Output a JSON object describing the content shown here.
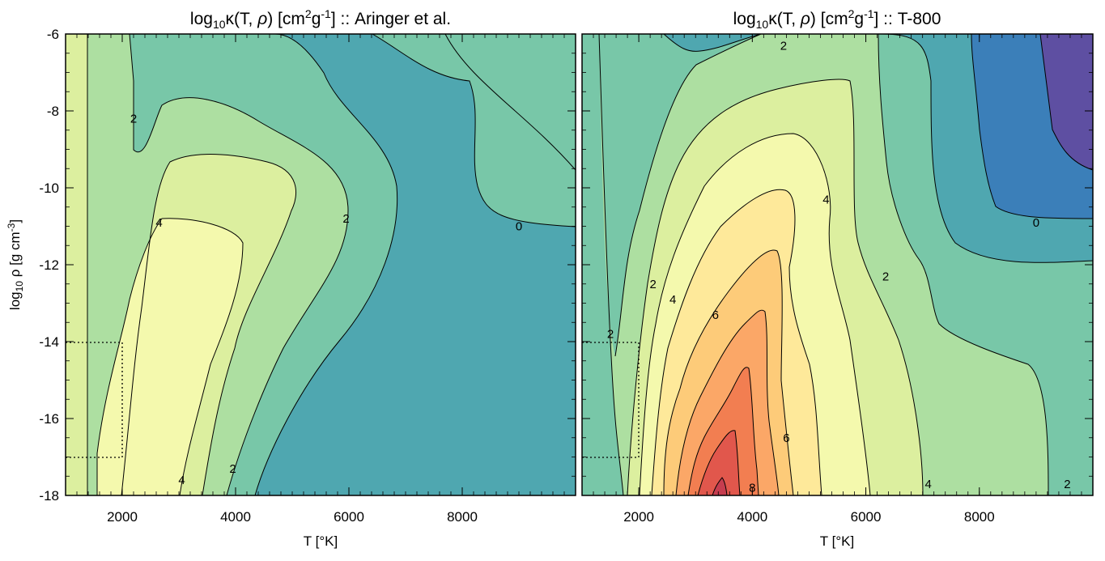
{
  "palette": {
    "neg2": "#5e4fa2",
    "neg1": "#3b7fb9",
    "lvl0": "#4fa7b0",
    "lvl1": "#78c7a8",
    "lvl2": "#addfa1",
    "lvl3": "#dcef9f",
    "lvl4": "#f4f9ad",
    "lvl5": "#fee99a",
    "lvl6": "#fdcb79",
    "lvl7": "#fba767",
    "lvl8": "#f27e51",
    "lvl9": "#e1574c",
    "lvl10": "#c63d4f"
  },
  "chart_data": [
    {
      "type": "heatmap",
      "subtype": "filled-contour",
      "title_parts": {
        "pre": "log",
        "sub": "10",
        "mid": "κ(T, ",
        "rho": "ρ",
        "mid2": ") [cm",
        "sup1": "2",
        "mid3": "g",
        "sup2": "-1",
        "post": "] :: Aringer et al."
      },
      "xlabel": "T [°K]",
      "ylabel_parts": {
        "pre": "log",
        "sub": "10",
        "mid": " ρ [g cm",
        "sup": "-3",
        "post": "]"
      },
      "xlim": [
        1000,
        10000
      ],
      "ylim": [
        -18,
        -6
      ],
      "xticks": [
        2000,
        4000,
        6000,
        8000
      ],
      "yticks": [
        -18,
        -16,
        -14,
        -12,
        -10,
        -8,
        -6
      ],
      "contour_labels": [
        {
          "text": "2",
          "x": 2200,
          "y": -8.2
        },
        {
          "text": "4",
          "x": 2650,
          "y": -10.9
        },
        {
          "text": "2",
          "x": 5950,
          "y": -10.8
        },
        {
          "text": "0",
          "x": 9000,
          "y": -11.0
        },
        {
          "text": "4",
          "x": 3050,
          "y": -17.6
        },
        {
          "text": "2",
          "x": 3950,
          "y": -17.3
        }
      ],
      "dotted_box": {
        "t_range": [
          1000,
          2000
        ],
        "logrho_range": [
          -17,
          -14
        ]
      }
    },
    {
      "type": "heatmap",
      "subtype": "filled-contour",
      "title_parts": {
        "pre": "log",
        "sub": "10",
        "mid": "κ(T, ",
        "rho": "ρ",
        "mid2": ") [cm",
        "sup1": "2",
        "mid3": "g",
        "sup2": "-1",
        "post": "] :: T-800"
      },
      "xlabel": "T [°K]",
      "xlim": [
        1000,
        10000
      ],
      "ylim": [
        -18,
        -6
      ],
      "xticks": [
        2000,
        4000,
        6000,
        8000
      ],
      "yticks": [
        -18,
        -16,
        -14,
        -12,
        -10,
        -8,
        -6
      ],
      "contour_labels": [
        {
          "text": "2",
          "x": 4550,
          "y": -6.3
        },
        {
          "text": "4",
          "x": 5300,
          "y": -10.3
        },
        {
          "text": "0",
          "x": 9000,
          "y": -10.9
        },
        {
          "text": "2",
          "x": 2250,
          "y": -12.5
        },
        {
          "text": "4",
          "x": 2600,
          "y": -12.9
        },
        {
          "text": "6",
          "x": 3350,
          "y": -13.3
        },
        {
          "text": "2",
          "x": 1500,
          "y": -13.8
        },
        {
          "text": "2",
          "x": 6350,
          "y": -12.3
        },
        {
          "text": "6",
          "x": 4600,
          "y": -16.5
        },
        {
          "text": "8",
          "x": 4000,
          "y": -17.8
        },
        {
          "text": "4",
          "x": 7100,
          "y": -17.7
        },
        {
          "text": "2",
          "x": 9550,
          "y": -17.7
        }
      ],
      "dotted_box": {
        "t_range": [
          1000,
          2000
        ],
        "logrho_range": [
          -17,
          -14
        ]
      }
    }
  ]
}
